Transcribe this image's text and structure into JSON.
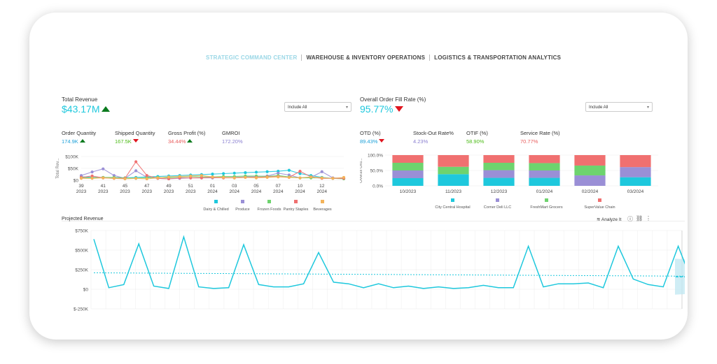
{
  "tabs": [
    {
      "label": "STRATEGIC COMMAND CENTER",
      "active": true
    },
    {
      "label": "WAREHOUSE & INVENTORY OPERATIONS",
      "active": false
    },
    {
      "label": "LOGISTICS & TRANSPORTATION ANALYTICS",
      "active": false
    }
  ],
  "left_kpi": {
    "title": "Total Revenue",
    "value": "$43.17M",
    "trend": "up",
    "filter": "Include All"
  },
  "right_kpi": {
    "title": "Overall Order Fill Rate (%)",
    "value": "95.77%",
    "trend": "down",
    "filter": "Include All"
  },
  "left_metrics": [
    {
      "label": "Order Quantity",
      "value": "174.9K",
      "trend": "up",
      "color": "#1a9fd8"
    },
    {
      "label": "Shipped Quantity",
      "value": "167.5K",
      "trend": "down",
      "color": "#4cbb17"
    },
    {
      "label": "Gross Profit (%)",
      "value": "34.44%",
      "trend": "up",
      "color": "#e85c5c"
    },
    {
      "label": "GMROI",
      "value": "172.20%",
      "trend": "none",
      "color": "#8a7fd0"
    }
  ],
  "right_metrics": [
    {
      "label": "OTD (%)",
      "value": "89.43%",
      "trend": "down",
      "color": "#1a9fd8"
    },
    {
      "label": "Stock-Out Rate%",
      "value": "4.23%",
      "trend": "none",
      "color": "#8a7fd0"
    },
    {
      "label": "OTIF (%)",
      "value": "58.90%",
      "trend": "none",
      "color": "#4cbb17"
    },
    {
      "label": "Service Rate (%)",
      "value": "70.77%",
      "trend": "none",
      "color": "#e85c5c"
    }
  ],
  "projected": {
    "title": "Projected Revenue",
    "analyze_label": "Analyze It"
  },
  "chart_data": [
    {
      "type": "line",
      "ylabel": "Total Rev...",
      "yticks": [
        "$0",
        "$50K",
        "$100K"
      ],
      "ylim": [
        0,
        100
      ],
      "x_labels": [
        {
          "top": "39",
          "bottom": "2023"
        },
        {
          "top": "41",
          "bottom": "2023"
        },
        {
          "top": "45",
          "bottom": "2023"
        },
        {
          "top": "47",
          "bottom": "2023"
        },
        {
          "top": "49",
          "bottom": "2023"
        },
        {
          "top": "51",
          "bottom": "2023"
        },
        {
          "top": "01",
          "bottom": "2024"
        },
        {
          "top": "03",
          "bottom": "2024"
        },
        {
          "top": "05",
          "bottom": "2024"
        },
        {
          "top": "07",
          "bottom": "2024"
        },
        {
          "top": "10",
          "bottom": "2024"
        },
        {
          "top": "12",
          "bottom": "2024"
        }
      ],
      "x": [
        39,
        40,
        41,
        42,
        43,
        44,
        45,
        46,
        47,
        48,
        49,
        50,
        51,
        52,
        53,
        54,
        55,
        56,
        57,
        58,
        59,
        60,
        61,
        62,
        63
      ],
      "series": [
        {
          "name": "Dairy & Chilled",
          "color": "#1ec8dd",
          "values": [
            15,
            12,
            12,
            10,
            10,
            12,
            14,
            16,
            18,
            20,
            22,
            24,
            26,
            28,
            30,
            32,
            34,
            36,
            38,
            42,
            28,
            20,
            12,
            8,
            8
          ]
        },
        {
          "name": "Produce",
          "color": "#9a8fd6",
          "values": [
            20,
            35,
            48,
            20,
            8,
            40,
            12,
            8,
            6,
            8,
            10,
            10,
            10,
            12,
            12,
            14,
            16,
            18,
            30,
            22,
            10,
            12,
            36,
            10,
            8
          ]
        },
        {
          "name": "Frozen Foods",
          "color": "#6ed36e",
          "values": [
            10,
            10,
            12,
            12,
            10,
            8,
            10,
            12,
            10,
            14,
            16,
            14,
            14,
            16,
            16,
            18,
            18,
            16,
            20,
            14,
            10,
            10,
            10,
            8,
            6
          ]
        },
        {
          "name": "Pantry Staples",
          "color": "#f07070",
          "values": [
            12,
            18,
            10,
            8,
            8,
            78,
            20,
            8,
            6,
            10,
            10,
            10,
            12,
            10,
            10,
            12,
            12,
            14,
            16,
            12,
            38,
            14,
            8,
            8,
            8
          ]
        },
        {
          "name": "Beverages",
          "color": "#f3b35a",
          "values": [
            8,
            8,
            10,
            8,
            6,
            8,
            6,
            10,
            14,
            16,
            18,
            20,
            14,
            12,
            10,
            12,
            10,
            12,
            14,
            12,
            10,
            14,
            10,
            8,
            12
          ]
        }
      ]
    },
    {
      "type": "bar",
      "stacked": true,
      "ylabel": "Overall Ord...",
      "yticks": [
        "0.0%",
        "50.0%",
        "100.0%"
      ],
      "ylim": [
        0,
        100
      ],
      "categories": [
        "10/2023",
        "11/2023",
        "12/2023",
        "01/2024",
        "02/2024",
        "03/2024"
      ],
      "series": [
        {
          "name": "City Central Hospital",
          "color": "#1ec8dd",
          "values": [
            25,
            38,
            26,
            26,
            0,
            28
          ]
        },
        {
          "name": "Corner Deli LLC",
          "color": "#9a8fd6",
          "values": [
            25,
            0,
            25,
            24,
            34,
            33
          ]
        },
        {
          "name": "FreshMart Grocers",
          "color": "#6ed36e",
          "values": [
            25,
            24,
            24,
            24,
            32,
            0
          ]
        },
        {
          "name": "SuperValue Chain",
          "color": "#f07070",
          "values": [
            25,
            38,
            25,
            26,
            34,
            39
          ]
        }
      ]
    },
    {
      "type": "line",
      "title": "Projected Revenue",
      "yticks": [
        "$-250K",
        "$0",
        "$250K",
        "$500K",
        "$750K"
      ],
      "ylim": [
        -250,
        750
      ],
      "series": [
        {
          "name": "actual",
          "color": "#1ec8dd",
          "values": [
            640,
            20,
            60,
            580,
            40,
            10,
            670,
            30,
            10,
            20,
            570,
            60,
            30,
            30,
            70,
            470,
            90,
            70,
            20,
            70,
            20,
            40,
            10,
            30,
            10,
            20,
            50,
            20,
            20,
            550,
            30,
            70,
            70,
            80,
            20,
            550,
            130,
            60,
            30,
            550,
            60,
            30,
            560,
            110,
            90,
            550,
            80
          ]
        },
        {
          "name": "trend",
          "color": "#1ec8dd",
          "values": [
            210,
            160
          ]
        },
        {
          "name": "forecast",
          "color": "#1ec8dd",
          "values": [
            80,
            120,
            160,
            160,
            160
          ]
        }
      ]
    }
  ]
}
